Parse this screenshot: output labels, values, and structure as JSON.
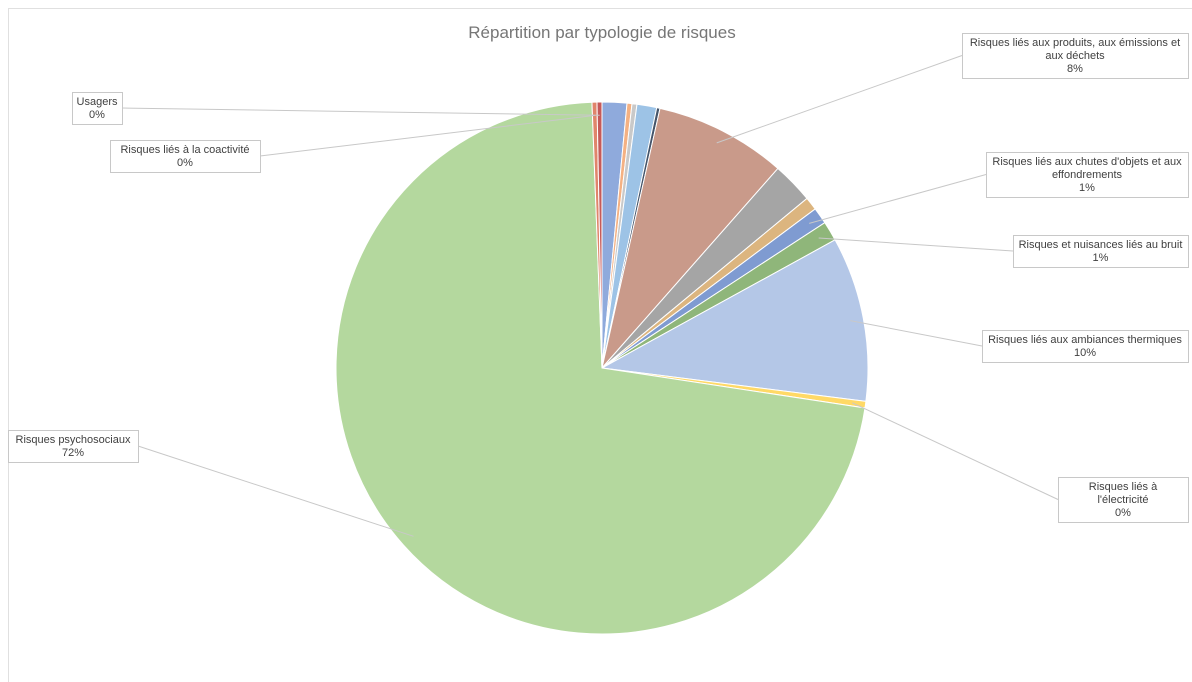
{
  "chart_data": {
    "type": "pie",
    "title": "Répartition par typologie de risques",
    "categories": [
      null,
      null,
      null,
      null,
      null,
      "Risques liés aux produits, aux émissions et aux déchets",
      null,
      null,
      "Risques liés aux chutes d'objets et aux effondrements",
      "Risques et nuisances liés au bruit",
      "Risques liés aux ambiances thermiques",
      "Risques liés à l'électricité",
      "Risques psychosociaux",
      "Risques liés à la coactivité",
      "Usagers"
    ],
    "values": [
      1.5,
      0.3,
      0.3,
      1.2,
      0.2,
      8,
      2.5,
      0.8,
      1,
      1.2,
      10,
      0.4,
      72,
      0.3,
      0.3
    ],
    "value_labels": [
      null,
      null,
      null,
      null,
      null,
      "8%",
      null,
      null,
      "1%",
      "1%",
      "10%",
      "0%",
      "72%",
      "0%",
      "0%"
    ],
    "colors": [
      "#8faadc",
      "#f4b183",
      "#c9c9c9",
      "#9dc3e6",
      "#44546a",
      "#c99a8a",
      "#a5a5a5",
      "#dcb57f",
      "#7f9bd1",
      "#8fb67a",
      "#b4c7e7",
      "#ffd966",
      "#b4d89e",
      "#e0856b",
      "#c55a5a"
    ]
  }
}
